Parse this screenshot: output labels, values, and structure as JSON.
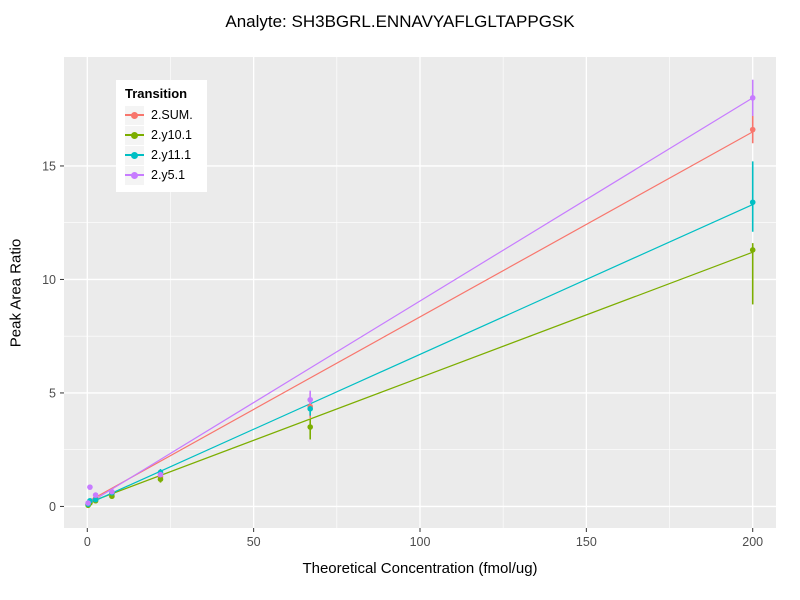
{
  "chart_data": {
    "type": "scatter",
    "title": "Analyte: SH3BGRL.ENNAVYAFLGLTAPPGSK",
    "xlabel": "Theoretical Concentration (fmol/ug)",
    "ylabel": "Peak Area Ratio",
    "legend_title": "Transition",
    "legend_position": "top-left-inside",
    "grid": true,
    "panel_bg": "#EBEBEB",
    "grid_color": "#FFFFFF",
    "tick_label_color": "#4D4D4D",
    "xlim": [
      -7,
      207
    ],
    "ylim": [
      -0.95,
      19.8
    ],
    "x_ticks": [
      0,
      50,
      100,
      150,
      200
    ],
    "y_ticks": [
      0,
      5,
      10,
      15
    ],
    "series": [
      {
        "name": "2.SUM.",
        "color": "#F8766D",
        "fit_line": {
          "x": [
            0,
            200
          ],
          "y": [
            0.2,
            16.5
          ]
        },
        "points": [
          {
            "x": 0.25,
            "y": 0.1
          },
          {
            "x": 0.8,
            "y": 0.2
          },
          {
            "x": 2.5,
            "y": 0.35
          },
          {
            "x": 7.4,
            "y": 0.55
          },
          {
            "x": 22,
            "y": 1.3,
            "ymin": 1.15,
            "ymax": 1.45
          },
          {
            "x": 67,
            "y": 4.4,
            "ymin": 3.9,
            "ymax": 5.0
          },
          {
            "x": 200,
            "y": 16.6,
            "ymin": 16.0,
            "ymax": 17.2
          }
        ]
      },
      {
        "name": "2.y10.1",
        "color": "#7CAE00",
        "fit_line": {
          "x": [
            0,
            200
          ],
          "y": [
            0.15,
            11.2
          ]
        },
        "points": [
          {
            "x": 0.25,
            "y": 0.05
          },
          {
            "x": 0.8,
            "y": 0.15
          },
          {
            "x": 2.5,
            "y": 0.25
          },
          {
            "x": 7.4,
            "y": 0.45
          },
          {
            "x": 22,
            "y": 1.2,
            "ymin": 1.05,
            "ymax": 1.35
          },
          {
            "x": 67,
            "y": 3.5,
            "ymin": 2.95,
            "ymax": 3.85
          },
          {
            "x": 200,
            "y": 11.3,
            "ymin": 8.9,
            "ymax": 11.6
          }
        ]
      },
      {
        "name": "2.y11.1",
        "color": "#00BFC4",
        "fit_line": {
          "x": [
            0,
            200
          ],
          "y": [
            0.1,
            13.3
          ]
        },
        "points": [
          {
            "x": 0.25,
            "y": 0.1
          },
          {
            "x": 0.8,
            "y": 0.25
          },
          {
            "x": 2.5,
            "y": 0.3
          },
          {
            "x": 7.4,
            "y": 0.6
          },
          {
            "x": 22,
            "y": 1.5,
            "ymin": 1.35,
            "ymax": 1.65
          },
          {
            "x": 67,
            "y": 4.3,
            "ymin": 4.0,
            "ymax": 4.6
          },
          {
            "x": 200,
            "y": 13.4,
            "ymin": 12.1,
            "ymax": 15.2
          }
        ]
      },
      {
        "name": "2.y5.1",
        "color": "#C77CFF",
        "fit_line": {
          "x": [
            0,
            200
          ],
          "y": [
            0.1,
            18.0
          ]
        },
        "points": [
          {
            "x": 0.25,
            "y": 0.15
          },
          {
            "x": 0.8,
            "y": 0.85
          },
          {
            "x": 2.5,
            "y": 0.5
          },
          {
            "x": 7.4,
            "y": 0.65
          },
          {
            "x": 22,
            "y": 1.4,
            "ymin": 1.25,
            "ymax": 1.55
          },
          {
            "x": 67,
            "y": 4.7,
            "ymin": 4.3,
            "ymax": 5.1
          },
          {
            "x": 200,
            "y": 18.0,
            "ymin": 17.2,
            "ymax": 18.8
          }
        ]
      }
    ]
  }
}
